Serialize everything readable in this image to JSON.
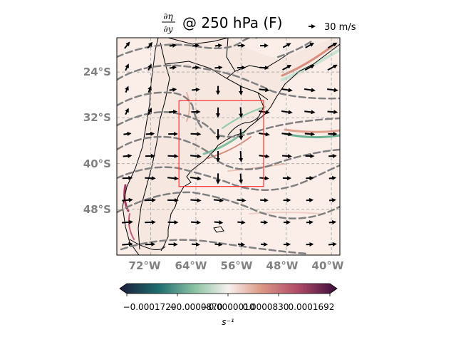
{
  "figure": {
    "title_numerator": "∂η",
    "title_denominator": "∂y",
    "title_rest": "@ 250 hPa (F)",
    "quiver_key_label": "30 m/s"
  },
  "axes": {
    "lat_labels": [
      "24°S",
      "32°S",
      "40°S",
      "48°S"
    ],
    "lon_labels": [
      "72°W",
      "64°W",
      "56°W",
      "48°W",
      "40°W"
    ],
    "lat_values": [
      -24,
      -32,
      -40,
      -48
    ],
    "lon_values": [
      -72,
      -64,
      -56,
      -48,
      -40
    ],
    "extent": {
      "lon_min": -78,
      "lon_max": -38.5,
      "lat_min": -56,
      "lat_max": -18
    }
  },
  "box": {
    "lon_min": -67,
    "lon_max": -52,
    "lat_min": -44,
    "lat_max": -29
  },
  "colorbar": {
    "ticks": [
      "−0.0001720",
      "−0.0000870",
      "−0.0000010",
      "0.0000830",
      "0.0001692"
    ],
    "label": "s⁻¹",
    "colormap": "curl",
    "colors": [
      "#1b1b3a",
      "#1f6e6e",
      "#8ec4a6",
      "#f7f1ef",
      "#dc9986",
      "#b04b68",
      "#3d0c3a"
    ]
  },
  "styles": {
    "contour_color": "#808080",
    "box_color": "#ff3030",
    "grid_color": "#b0b0b0",
    "vector_color": "#000000"
  }
}
